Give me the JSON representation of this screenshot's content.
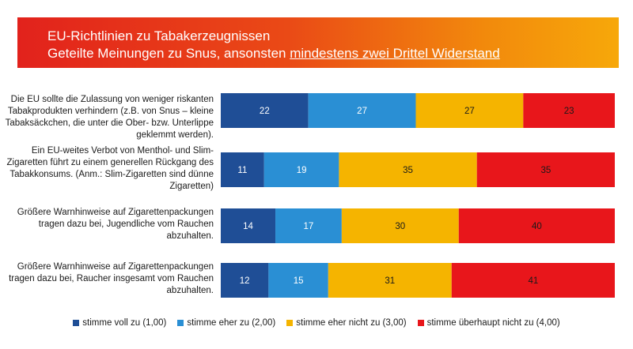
{
  "header": {
    "title": "EU-Richtlinien zu Tabakerzeugnissen",
    "subtitle_prefix": "Geteilte Meinungen zu Snus, ansonsten ",
    "subtitle_emphasis": "mindestens zwei Drittel Widerstand"
  },
  "colors": {
    "voll": "#1f4e96",
    "eher": "#2a8fd4",
    "eher_nicht": "#f5b400",
    "ueberhaupt_nicht": "#e8161b"
  },
  "chart_data": {
    "type": "bar",
    "orientation": "horizontal",
    "stacked": true,
    "title": "EU-Richtlinien zu Tabakerzeugnissen",
    "subtitle": "Geteilte Meinungen zu Snus, ansonsten mindestens zwei Drittel Widerstand",
    "categories": [
      "Die EU sollte die Zulassung von weniger riskanten Tabakprodukten verhindern (z.B. von Snus – kleine Tabaksäckchen, die unter die Ober- bzw. Unterlippe geklemmt werden).",
      "Ein EU-weites Verbot von Menthol- und Slim-Zigaretten führt zu einem generellen Rückgang des Tabakkonsums. (Anm.: Slim-Zigaretten sind dünne Zigaretten)",
      "Größere Warnhinweise auf Zigarettenpackungen tragen dazu bei, Jugendliche vom Rauchen abzuhalten.",
      "Größere Warnhinweise auf Zigarettenpackungen tragen dazu bei, Raucher insgesamt vom Rauchen abzuhalten."
    ],
    "series": [
      {
        "name": "stimme voll zu (1,00)",
        "color": "#1f4e96",
        "values": [
          22,
          11,
          14,
          12
        ]
      },
      {
        "name": "stimme eher zu (2,00)",
        "color": "#2a8fd4",
        "values": [
          27,
          19,
          17,
          15
        ]
      },
      {
        "name": "stimme eher nicht zu (3,00)",
        "color": "#f5b400",
        "values": [
          27,
          35,
          30,
          31
        ]
      },
      {
        "name": "stimme überhaupt nicht zu (4,00)",
        "color": "#e8161b",
        "values": [
          23,
          35,
          40,
          41
        ]
      }
    ],
    "legend_position": "bottom",
    "grid": false
  }
}
